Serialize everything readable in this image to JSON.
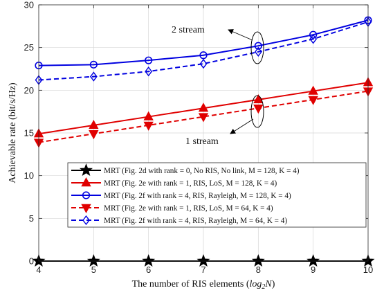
{
  "chart_data": {
    "type": "line",
    "xlabel_prefix": "The number of RIS elements (",
    "xlabel_math": "log",
    "xlabel_sub": "2",
    "xlabel_var": "N",
    "xlabel_suffix": ")",
    "ylabel": "Achievable rate (bit/s/Hz)",
    "x": [
      4,
      5,
      6,
      7,
      8,
      9,
      10
    ],
    "xlim": [
      4,
      10
    ],
    "ylim": [
      0,
      30
    ],
    "xticks": [
      "4",
      "5",
      "6",
      "7",
      "8",
      "9",
      "10"
    ],
    "yticks": [
      "0",
      "5",
      "10",
      "15",
      "20",
      "25",
      "30"
    ],
    "grid": true,
    "legend_position": "bottom-right",
    "series": [
      {
        "name": "MRT (Fig. 2d with rank = 0, No RIS, No link, M = 128, K = 4)",
        "color": "#000000",
        "dash": "solid",
        "marker": "star",
        "values": [
          0,
          0,
          0,
          0,
          0,
          0,
          0
        ]
      },
      {
        "name": "MRT (Fig. 2e with rank = 1, RIS, LoS, M = 128, K = 4)",
        "color": "#e00000",
        "dash": "solid",
        "marker": "triangle-up",
        "values": [
          14.9,
          15.9,
          16.9,
          17.9,
          18.9,
          19.9,
          20.9
        ]
      },
      {
        "name": "MRT (Fig. 2f with rank = 4, RIS, Rayleigh, M = 128, K = 4)",
        "color": "#0000e0",
        "dash": "solid",
        "marker": "circle",
        "values": [
          22.9,
          23.0,
          23.5,
          24.1,
          25.2,
          26.5,
          28.2
        ]
      },
      {
        "name": "MRT (Fig. 2e with rank = 1, RIS, LoS, M = 64, K = 4)",
        "color": "#e00000",
        "dash": "dashed",
        "marker": "triangle-down",
        "values": [
          13.9,
          14.9,
          15.9,
          16.9,
          17.9,
          18.9,
          19.9
        ]
      },
      {
        "name": "MRT (Fig. 2f with rank = 4, RIS, Rayleigh, M = 64, K = 4)",
        "color": "#0000e0",
        "dash": "dashed",
        "marker": "diamond",
        "values": [
          21.2,
          21.6,
          22.2,
          23.1,
          24.5,
          26.0,
          28.0
        ]
      }
    ],
    "annotations": [
      {
        "text": "2 stream",
        "at_x": 8,
        "y_range": [
          24.4,
          25.2
        ]
      },
      {
        "text": "1 stream",
        "at_x": 8,
        "y_range": [
          17.9,
          18.9
        ]
      }
    ]
  }
}
